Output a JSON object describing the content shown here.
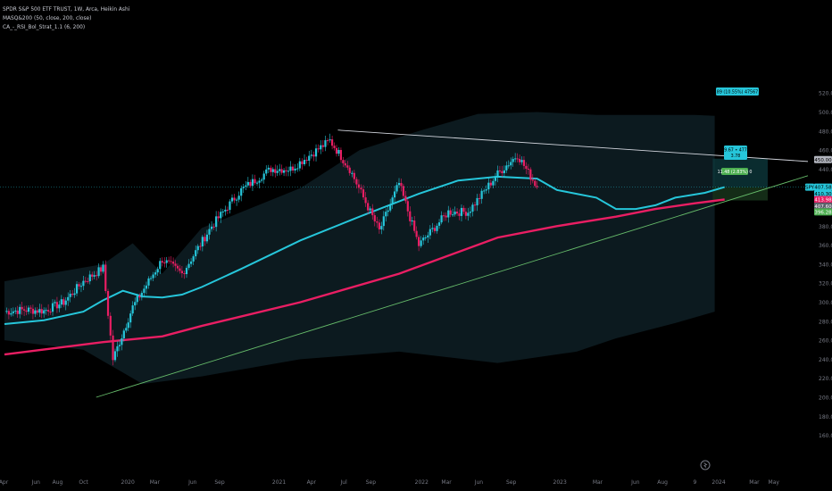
{
  "legend": {
    "line1": "SPDR S&P 500 ETF TRUST, 1W, Arca, Heikin Ashi",
    "line2": "MASQ&200 (50, close, 200, close)",
    "line3": "CA_-_RSI_Bol_Strat_1.1 (6, 200)"
  },
  "price_axis": {
    "labels": [
      "520.00",
      "500.00",
      "480.00",
      "460.00",
      "440.00",
      "420.00",
      "400.00",
      "380.00",
      "360.00",
      "340.00",
      "320.00",
      "300.00",
      "280.00",
      "260.00",
      "240.00",
      "220.00",
      "200.00",
      "180.00",
      "160.00"
    ]
  },
  "time_axis": {
    "labels": [
      "Apr",
      "Jun",
      "Aug",
      "Oct",
      "2020",
      "Mar",
      "Jun",
      "Sep",
      "2021",
      "Apr",
      "Jul",
      "Sep",
      "2022",
      "Mar",
      "Jun",
      "Sep",
      "2023",
      "Mar",
      "Jun",
      "Aug",
      "9",
      "2024",
      "Mar",
      "May"
    ]
  },
  "price_tags": [
    {
      "label": "450.00",
      "value": 450,
      "bg": "#b2b5be",
      "fg": "#000000"
    },
    {
      "label": "SPY",
      "value": 421,
      "bg": "#26c6da",
      "fg": "#000000"
    },
    {
      "label": "407.58",
      "value": 421,
      "bg": "#26c6da",
      "fg": "#000000"
    },
    {
      "label": "410.30",
      "value": 414,
      "bg": "#26c6da",
      "fg": "#000000"
    },
    {
      "label": "413.98",
      "value": 408,
      "bg": "#e91e63",
      "fg": "#ffffff"
    },
    {
      "label": "407.60",
      "value": 401,
      "bg": "#5d606b",
      "fg": "#ffffff"
    },
    {
      "label": "396.28",
      "value": 395,
      "bg": "#4caf50",
      "fg": "#ffffff"
    }
  ],
  "position_labels": {
    "target": "42.89 (10.55%) 47567.22",
    "middle_line1": "9.67 • 477",
    "middle_line2": "3.78",
    "stop": "11.48 (2.83%) 0"
  },
  "colors": {
    "background": "#000000",
    "bull": "#26c6da",
    "bear": "#e91e63",
    "ma50": "#26c6da",
    "ma200": "#e91e63",
    "band_fill": "#0c1a1f",
    "resistance_line": "#d1d4dc",
    "support_line": "#66bb6a",
    "target_zone": "#0e3b3f",
    "stop_zone": "#17341b"
  },
  "icon": "tradingview-logo-icon",
  "chart_data": {
    "type": "candlestick",
    "title": "SPDR S&P 500 ETF TRUST, 1W, Arca, Heikin Ashi",
    "y_range": [
      150,
      525
    ],
    "current_price": 421,
    "weekly_close_path": [
      {
        "date": "2019-04",
        "close": 290
      },
      {
        "date": "2019-06",
        "close": 292
      },
      {
        "date": "2019-08",
        "close": 291
      },
      {
        "date": "2019-10",
        "close": 300
      },
      {
        "date": "2019-12",
        "close": 322
      },
      {
        "date": "2020-02",
        "close": 336
      },
      {
        "date": "2020-03",
        "close": 240
      },
      {
        "date": "2020-05",
        "close": 295
      },
      {
        "date": "2020-08",
        "close": 345
      },
      {
        "date": "2020-10",
        "close": 330
      },
      {
        "date": "2021-01",
        "close": 380
      },
      {
        "date": "2021-04",
        "close": 418
      },
      {
        "date": "2021-07",
        "close": 440
      },
      {
        "date": "2021-09",
        "close": 440
      },
      {
        "date": "2022-01",
        "close": 470
      },
      {
        "date": "2022-03",
        "close": 440
      },
      {
        "date": "2022-06",
        "close": 375
      },
      {
        "date": "2022-08",
        "close": 425
      },
      {
        "date": "2022-10",
        "close": 360
      },
      {
        "date": "2023-01",
        "close": 395
      },
      {
        "date": "2023-03",
        "close": 395
      },
      {
        "date": "2023-06",
        "close": 435
      },
      {
        "date": "2023-08",
        "close": 455
      },
      {
        "date": "2023-10",
        "close": 421
      }
    ],
    "series": [
      {
        "name": "MA 50",
        "points": [
          [
            0,
            277
          ],
          [
            4,
            281
          ],
          [
            8,
            290
          ],
          [
            10,
            302
          ],
          [
            12,
            312
          ],
          [
            14,
            306
          ],
          [
            16,
            305
          ],
          [
            18,
            308
          ],
          [
            20,
            316
          ],
          [
            24,
            335
          ],
          [
            30,
            365
          ],
          [
            36,
            390
          ],
          [
            42,
            414
          ],
          [
            46,
            428
          ],
          [
            50,
            432
          ],
          [
            54,
            430
          ],
          [
            56,
            418
          ],
          [
            58,
            414
          ],
          [
            60,
            410
          ],
          [
            62,
            398
          ],
          [
            64,
            398
          ],
          [
            66,
            402
          ],
          [
            68,
            410
          ],
          [
            71,
            415
          ],
          [
            73,
            421
          ]
        ]
      },
      {
        "name": "MA 200",
        "points": [
          [
            0,
            245
          ],
          [
            10,
            258
          ],
          [
            16,
            264
          ],
          [
            20,
            275
          ],
          [
            30,
            300
          ],
          [
            40,
            330
          ],
          [
            50,
            368
          ],
          [
            56,
            380
          ],
          [
            62,
            390
          ],
          [
            66,
            398
          ],
          [
            70,
            404
          ],
          [
            73,
            408
          ]
        ]
      }
    ]
  }
}
